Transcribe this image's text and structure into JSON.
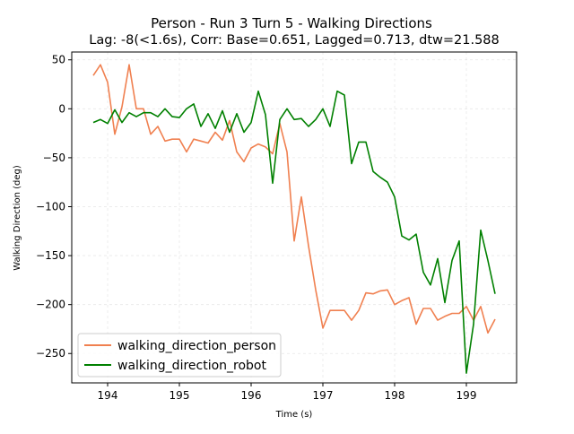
{
  "chart_data": {
    "type": "line",
    "title": "Person - Run 3 Turn 5 - Walking Directions",
    "subtitle": "Lag: -8(<1.6s), Corr: Base=0.651, Lagged=0.713, dtw=21.588",
    "xlabel": "Time (s)",
    "ylabel": "Walking Direction (deg)",
    "xlim": [
      193.5,
      199.7
    ],
    "ylim": [
      -280,
      58
    ],
    "xticks": [
      194,
      195,
      196,
      197,
      198,
      199
    ],
    "yticks": [
      50,
      0,
      -50,
      -100,
      -150,
      -200,
      -250
    ],
    "ytick_labels": [
      "50",
      "0",
      "−50",
      "−100",
      "−150",
      "−200",
      "−250"
    ],
    "grid": true,
    "legend_position": "lower-left",
    "series": [
      {
        "name": "walking_direction_person",
        "color": "#f08050",
        "x": [
          193.8,
          193.9,
          194.0,
          194.1,
          194.2,
          194.3,
          194.4,
          194.5,
          194.6,
          194.7,
          194.8,
          194.9,
          195.0,
          195.1,
          195.2,
          195.3,
          195.4,
          195.5,
          195.6,
          195.7,
          195.8,
          195.9,
          196.0,
          196.1,
          196.2,
          196.3,
          196.4,
          196.5,
          196.6,
          196.7,
          196.8,
          196.9,
          197.0,
          197.1,
          197.2,
          197.3,
          197.4,
          197.5,
          197.6,
          197.7,
          197.8,
          197.9,
          198.0,
          198.1,
          198.2,
          198.3,
          198.4,
          198.5,
          198.6,
          198.7,
          198.8,
          198.9,
          199.0,
          199.1,
          199.2,
          199.3,
          199.4
        ],
        "y": [
          34,
          45,
          27,
          -26,
          2,
          45,
          0,
          0,
          -26,
          -18,
          -33,
          -31,
          -31,
          -44,
          -31,
          -33,
          -35,
          -24,
          -32,
          -12,
          -44,
          -54,
          -40,
          -36,
          -39,
          -46,
          -15,
          -44,
          -135,
          -90,
          -140,
          -185,
          -224,
          -206,
          -206,
          -206,
          -216,
          -206,
          -188,
          -189,
          -186,
          -185,
          -200,
          -196,
          -193,
          -220,
          -204,
          -204,
          -216,
          -212,
          -209,
          -209,
          -202,
          -216,
          -202,
          -229,
          -215
        ]
      },
      {
        "name": "walking_direction_robot",
        "color": "#008000",
        "x": [
          193.8,
          193.9,
          194.0,
          194.1,
          194.2,
          194.3,
          194.4,
          194.5,
          194.6,
          194.7,
          194.8,
          194.9,
          195.0,
          195.1,
          195.2,
          195.3,
          195.4,
          195.5,
          195.6,
          195.7,
          195.8,
          195.9,
          196.0,
          196.1,
          196.2,
          196.3,
          196.4,
          196.5,
          196.6,
          196.7,
          196.8,
          196.9,
          197.0,
          197.1,
          197.2,
          197.3,
          197.4,
          197.5,
          197.6,
          197.7,
          197.8,
          197.9,
          198.0,
          198.1,
          198.2,
          198.3,
          198.4,
          198.5,
          198.6,
          198.7,
          198.8,
          198.9,
          199.0,
          199.1,
          199.2,
          199.3,
          199.4
        ],
        "y": [
          -14,
          -11,
          -15,
          -1,
          -14,
          -4,
          -8,
          -4,
          -4,
          -8,
          0,
          -8,
          -9,
          0,
          5,
          -18,
          -5,
          -20,
          -2,
          -24,
          -5,
          -24,
          -14,
          18,
          -6,
          -76,
          -11,
          0,
          -11,
          -10,
          -18,
          -11,
          0,
          -18,
          18,
          14,
          -56,
          -34,
          -34,
          -64,
          -70,
          -75,
          -90,
          -130,
          -134,
          -128,
          -167,
          -180,
          -153,
          -198,
          -155,
          -135,
          -270,
          -220,
          -124,
          -155,
          -189
        ]
      }
    ]
  }
}
